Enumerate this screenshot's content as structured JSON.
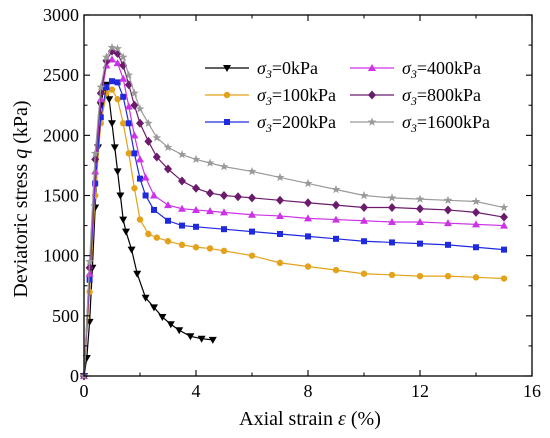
{
  "chart_data": {
    "type": "line",
    "xlabel_text": "Axial strain ",
    "xlabel_symbol": "ε",
    "xlabel_unit": " (%)",
    "ylabel_text": "Deviatoric stress ",
    "ylabel_symbol": "q",
    "ylabel_unit": " (kPa)",
    "xlim": [
      0,
      16
    ],
    "ylim": [
      0,
      3000
    ],
    "xticks": [
      0,
      4,
      8,
      12,
      16
    ],
    "yticks": [
      0,
      500,
      1000,
      1500,
      2000,
      2500,
      3000
    ],
    "legend_position": "top-right",
    "grid": false,
    "series": [
      {
        "name": "σ3=0kPa",
        "sym": "σ",
        "sub": "3",
        "rest": "=0kPa",
        "color": "#000000",
        "marker": "triangle-down",
        "x": [
          0,
          0.1,
          0.2,
          0.3,
          0.4,
          0.5,
          0.6,
          0.7,
          0.8,
          0.9,
          1.0,
          1.1,
          1.2,
          1.3,
          1.4,
          1.5,
          1.7,
          1.9,
          2.2,
          2.5,
          2.8,
          3.1,
          3.4,
          3.8,
          4.2,
          4.6
        ],
        "y": [
          0,
          150,
          450,
          900,
          1400,
          1900,
          2250,
          2380,
          2420,
          2300,
          2100,
          1900,
          1700,
          1500,
          1300,
          1200,
          1050,
          850,
          650,
          570,
          490,
          430,
          380,
          330,
          310,
          300
        ]
      },
      {
        "name": "σ3=100kPa",
        "sym": "σ",
        "sub": "3",
        "rest": "=100kPa",
        "color": "#E3A21A",
        "marker": "circle",
        "x": [
          0,
          0.2,
          0.4,
          0.6,
          0.8,
          1.0,
          1.2,
          1.4,
          1.6,
          1.8,
          2.0,
          2.3,
          2.6,
          3.0,
          3.5,
          4.0,
          4.5,
          5.0,
          6.0,
          7.0,
          8.0,
          9.0,
          10.0,
          11.0,
          12.0,
          13.0,
          14.0,
          15.0
        ],
        "y": [
          0,
          700,
          1500,
          2100,
          2350,
          2380,
          2300,
          2100,
          1850,
          1560,
          1300,
          1180,
          1150,
          1120,
          1090,
          1070,
          1060,
          1040,
          1000,
          940,
          910,
          880,
          850,
          840,
          830,
          830,
          820,
          810
        ]
      },
      {
        "name": "σ3=200kPa",
        "sym": "σ",
        "sub": "3",
        "rest": "=200kPa",
        "color": "#1F2AE0",
        "marker": "square",
        "x": [
          0,
          0.2,
          0.4,
          0.6,
          0.8,
          1.0,
          1.2,
          1.4,
          1.6,
          1.8,
          2.0,
          2.2,
          2.5,
          3.0,
          3.5,
          4.0,
          5.0,
          6.0,
          7.0,
          8.0,
          9.0,
          10.0,
          11.0,
          12.0,
          13.0,
          14.0,
          15.0
        ],
        "y": [
          0,
          800,
          1600,
          2150,
          2400,
          2450,
          2440,
          2320,
          2100,
          1850,
          1640,
          1500,
          1380,
          1290,
          1250,
          1240,
          1220,
          1200,
          1180,
          1160,
          1140,
          1120,
          1110,
          1100,
          1090,
          1070,
          1050
        ]
      },
      {
        "name": "σ3=400kPa",
        "sym": "σ",
        "sub": "3",
        "rest": "=400kPa",
        "color": "#CC33E6",
        "marker": "triangle-up",
        "x": [
          0,
          0.2,
          0.4,
          0.6,
          0.8,
          1.0,
          1.2,
          1.4,
          1.6,
          1.8,
          2.0,
          2.2,
          2.5,
          3.0,
          3.5,
          4.0,
          4.5,
          5.0,
          6.0,
          7.0,
          8.0,
          9.0,
          10.0,
          11.0,
          12.0,
          13.0,
          14.0,
          15.0
        ],
        "y": [
          0,
          850,
          1700,
          2300,
          2580,
          2630,
          2600,
          2470,
          2240,
          2000,
          1800,
          1650,
          1500,
          1420,
          1390,
          1380,
          1370,
          1360,
          1340,
          1330,
          1310,
          1300,
          1290,
          1280,
          1280,
          1270,
          1260,
          1250
        ]
      },
      {
        "name": "σ3=800kPa",
        "sym": "σ",
        "sub": "3",
        "rest": "=800kPa",
        "color": "#6B1B6B",
        "marker": "diamond",
        "x": [
          0,
          0.2,
          0.4,
          0.6,
          0.8,
          1.0,
          1.2,
          1.4,
          1.6,
          1.8,
          2.0,
          2.3,
          2.6,
          3.0,
          3.5,
          4.0,
          4.5,
          5.0,
          5.5,
          6.0,
          7.0,
          8.0,
          9.0,
          10.0,
          11.0,
          12.0,
          13.0,
          14.0,
          15.0
        ],
        "y": [
          0,
          900,
          1800,
          2350,
          2620,
          2700,
          2680,
          2580,
          2420,
          2250,
          2100,
          1950,
          1820,
          1720,
          1620,
          1560,
          1520,
          1500,
          1490,
          1480,
          1460,
          1440,
          1420,
          1400,
          1400,
          1390,
          1380,
          1360,
          1320
        ]
      },
      {
        "name": "σ3=1600kPa",
        "sym": "σ",
        "sub": "3",
        "rest": "=1600kPa",
        "color": "#9A9A9A",
        "marker": "star",
        "x": [
          0,
          0.2,
          0.4,
          0.6,
          0.8,
          1.0,
          1.2,
          1.4,
          1.6,
          1.8,
          2.0,
          2.3,
          2.6,
          3.0,
          3.5,
          4.0,
          4.5,
          5.0,
          6.0,
          7.0,
          8.0,
          9.0,
          10.0,
          11.0,
          12.0,
          13.0,
          14.0,
          15.0
        ],
        "y": [
          0,
          950,
          1850,
          2400,
          2650,
          2730,
          2720,
          2650,
          2500,
          2350,
          2220,
          2100,
          1980,
          1900,
          1840,
          1800,
          1770,
          1740,
          1700,
          1650,
          1600,
          1550,
          1500,
          1480,
          1470,
          1460,
          1450,
          1400
        ]
      }
    ]
  }
}
